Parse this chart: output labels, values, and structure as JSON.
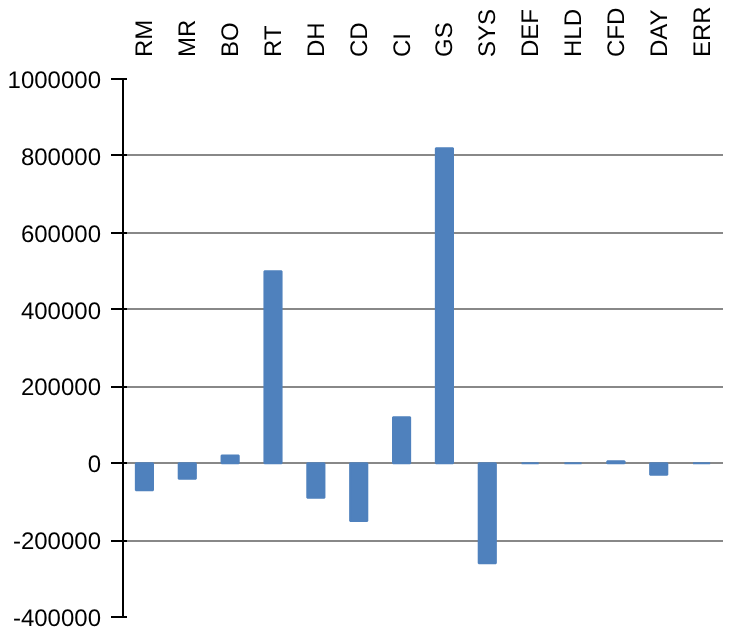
{
  "chart_data": {
    "type": "bar",
    "categories": [
      "RM",
      "MR",
      "BO",
      "RT",
      "DH",
      "CD",
      "CI",
      "GS",
      "SYS",
      "DEF",
      "HLD",
      "CFD",
      "DAY",
      "ERR"
    ],
    "values": [
      -70000,
      -40000,
      20000,
      500000,
      -90000,
      -150000,
      120000,
      820000,
      -260000,
      0,
      0,
      5000,
      -30000,
      0
    ],
    "color": "#4f81bd",
    "ylim": [
      -400000,
      1000000
    ],
    "yticks": [
      -400000,
      -200000,
      0,
      200000,
      400000,
      600000,
      800000,
      1000000
    ],
    "grid": "y"
  }
}
